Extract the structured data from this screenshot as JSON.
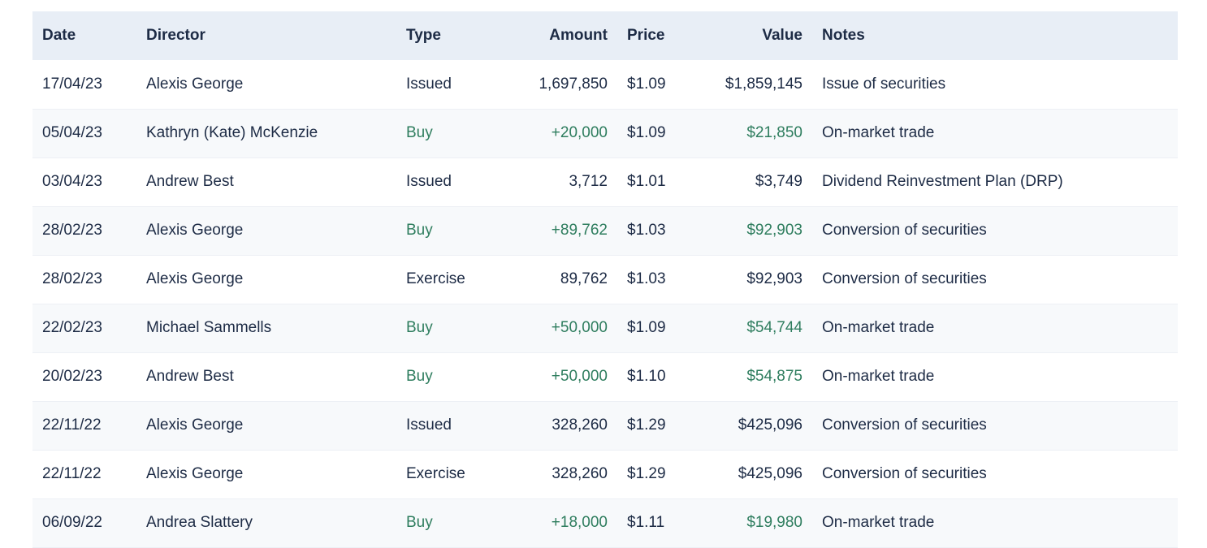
{
  "colors": {
    "header_bg": "#e8eef6",
    "row_alt_bg": "#f7f9fb",
    "text": "#1d2b45",
    "buy_green": "#2e7d5e",
    "row_border": "#edf0f5",
    "page_bg": "#ffffff"
  },
  "table": {
    "columns": [
      {
        "key": "date",
        "label": "Date",
        "align": "left"
      },
      {
        "key": "director",
        "label": "Director",
        "align": "left"
      },
      {
        "key": "type",
        "label": "Type",
        "align": "left"
      },
      {
        "key": "amount",
        "label": "Amount",
        "align": "right"
      },
      {
        "key": "price",
        "label": "Price",
        "align": "left"
      },
      {
        "key": "value",
        "label": "Value",
        "align": "right"
      },
      {
        "key": "notes",
        "label": "Notes",
        "align": "left"
      }
    ],
    "rows": [
      {
        "date": "17/04/23",
        "director": "Alexis George",
        "type": "Issued",
        "amount": "1,697,850",
        "price": "$1.09",
        "value": "$1,859,145",
        "notes": "Issue of securities",
        "buy": false
      },
      {
        "date": "05/04/23",
        "director": "Kathryn (Kate) McKenzie",
        "type": "Buy",
        "amount": "+20,000",
        "price": "$1.09",
        "value": "$21,850",
        "notes": "On-market trade",
        "buy": true
      },
      {
        "date": "03/04/23",
        "director": "Andrew Best",
        "type": "Issued",
        "amount": "3,712",
        "price": "$1.01",
        "value": "$3,749",
        "notes": "Dividend Reinvestment Plan (DRP)",
        "buy": false
      },
      {
        "date": "28/02/23",
        "director": "Alexis George",
        "type": "Buy",
        "amount": "+89,762",
        "price": "$1.03",
        "value": "$92,903",
        "notes": "Conversion of securities",
        "buy": true
      },
      {
        "date": "28/02/23",
        "director": "Alexis George",
        "type": "Exercise",
        "amount": "89,762",
        "price": "$1.03",
        "value": "$92,903",
        "notes": "Conversion of securities",
        "buy": false
      },
      {
        "date": "22/02/23",
        "director": "Michael Sammells",
        "type": "Buy",
        "amount": "+50,000",
        "price": "$1.09",
        "value": "$54,744",
        "notes": "On-market trade",
        "buy": true
      },
      {
        "date": "20/02/23",
        "director": "Andrew Best",
        "type": "Buy",
        "amount": "+50,000",
        "price": "$1.10",
        "value": "$54,875",
        "notes": "On-market trade",
        "buy": true
      },
      {
        "date": "22/11/22",
        "director": "Alexis George",
        "type": "Issued",
        "amount": "328,260",
        "price": "$1.29",
        "value": "$425,096",
        "notes": "Conversion of securities",
        "buy": false
      },
      {
        "date": "22/11/22",
        "director": "Alexis George",
        "type": "Exercise",
        "amount": "328,260",
        "price": "$1.29",
        "value": "$425,096",
        "notes": "Conversion of securities",
        "buy": false
      },
      {
        "date": "06/09/22",
        "director": "Andrea Slattery",
        "type": "Buy",
        "amount": "+18,000",
        "price": "$1.11",
        "value": "$19,980",
        "notes": "On-market trade",
        "buy": true
      }
    ]
  }
}
